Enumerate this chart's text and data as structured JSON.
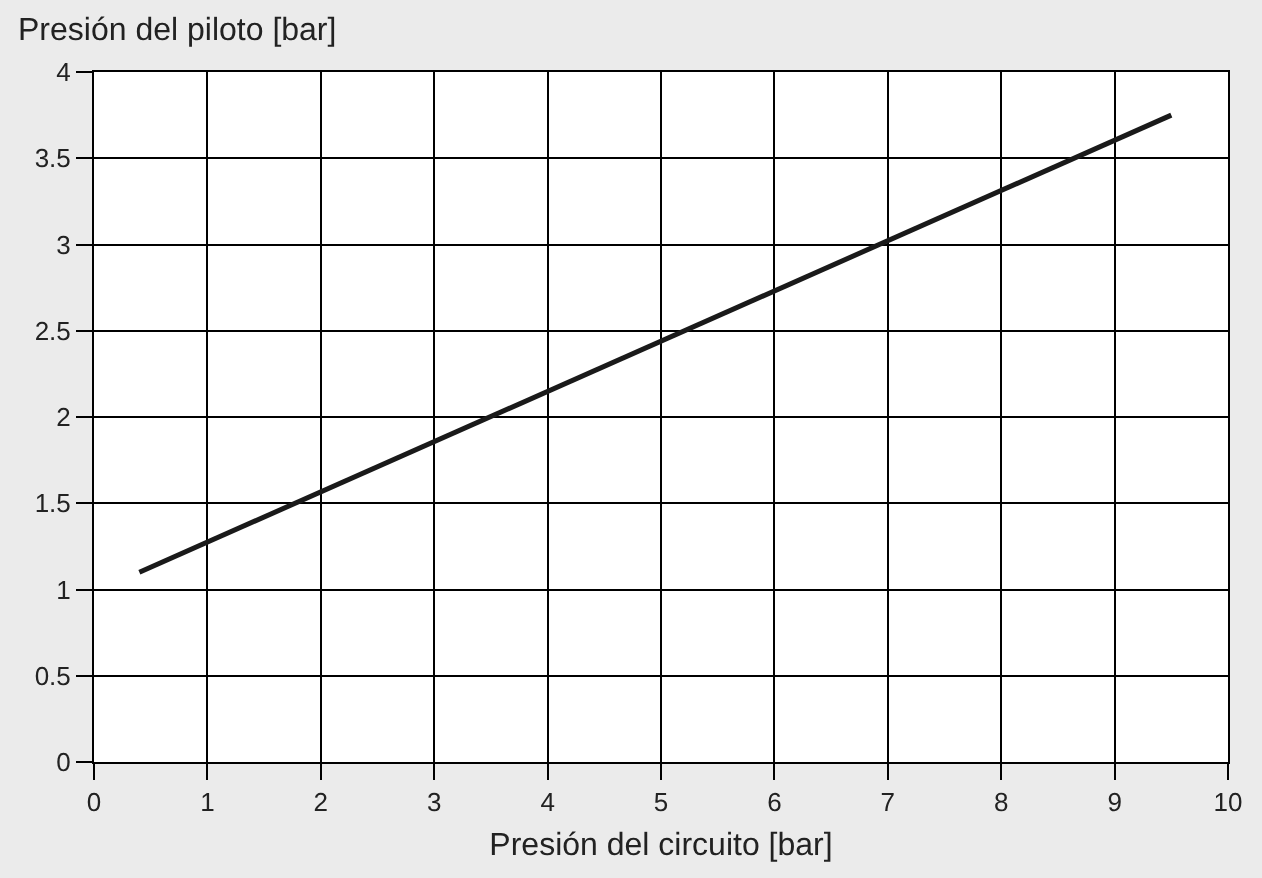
{
  "chart_data": {
    "type": "line",
    "xlabel": "Presión del circuito [bar]",
    "ylabel": "Presión del piloto [bar]",
    "x": [
      0.4,
      9.5
    ],
    "series": [
      {
        "color": "#1a1a1a",
        "values": [
          1.1,
          3.75
        ]
      }
    ],
    "xlim": [
      0,
      10
    ],
    "xticks": [
      0,
      1,
      2,
      3,
      4,
      5,
      6,
      7,
      8,
      9,
      10
    ],
    "ylim": [
      0,
      4
    ],
    "yticks": [
      0,
      0.5,
      1,
      1.5,
      2,
      2.5,
      3,
      3.5,
      4
    ],
    "grid": true,
    "line_style": "solid"
  }
}
